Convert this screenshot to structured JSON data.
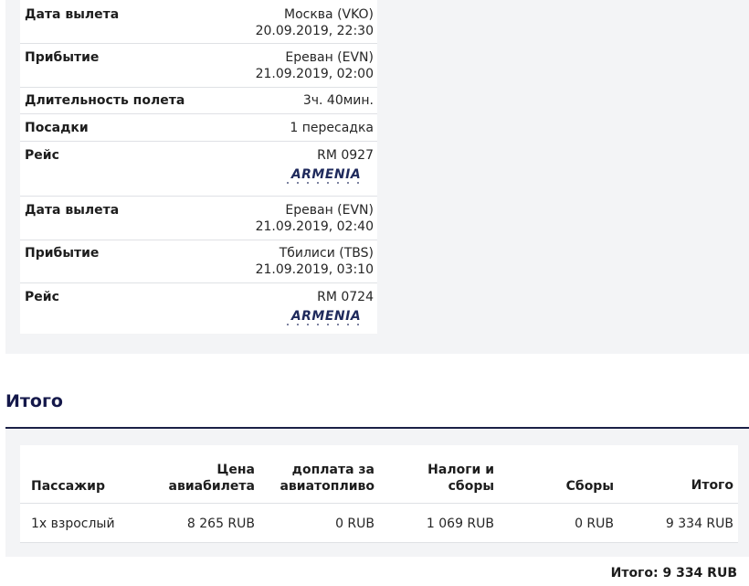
{
  "segments": [
    {
      "departure": {
        "label": "Дата вылета",
        "place": "Москва (VKO)",
        "datetime": "20.09.2019, 22:30"
      },
      "arrival": {
        "label": "Прибытие",
        "place": "Ереван (EVN)",
        "datetime": "21.09.2019, 02:00"
      }
    },
    {
      "departure": {
        "label": "Дата вылета",
        "place": "Ереван (EVN)",
        "datetime": "21.09.2019, 02:40"
      },
      "arrival": {
        "label": "Прибытие",
        "place": "Тбилиси (TBS)",
        "datetime": "21.09.2019, 03:10"
      }
    }
  ],
  "duration": {
    "label": "Длительность полета",
    "value": "3ч. 40мин."
  },
  "stops": {
    "label": "Посадки",
    "value": "1 пересадка"
  },
  "flights": [
    {
      "label": "Рейс",
      "number": "RM 0927",
      "airline_logo": "ARMENIA"
    },
    {
      "label": "Рейс",
      "number": "RM 0724",
      "airline_logo": "ARMENIA"
    }
  ],
  "summary": {
    "title": "Итого",
    "headers": {
      "passenger": "Пассажир",
      "price_l1": "Цена",
      "price_l2": "авиабилета",
      "fuel_l1": "доплата за",
      "fuel_l2": "авиатопливо",
      "taxes_l1": "Налоги и",
      "taxes_l2": "сборы",
      "fees": "Сборы",
      "total": "Итого"
    },
    "row": {
      "passenger": "1х взрослый",
      "price": "8 265 RUB",
      "fuel": "0 RUB",
      "taxes": "1 069 RUB",
      "fees": "0 RUB",
      "total": "9 334 RUB"
    },
    "grand_total": "Итого: 9 334 RUB"
  },
  "colors": {
    "brand_navy": "#14184a",
    "panel_bg": "#f3f4f6",
    "divider": "#dfe1e5"
  }
}
